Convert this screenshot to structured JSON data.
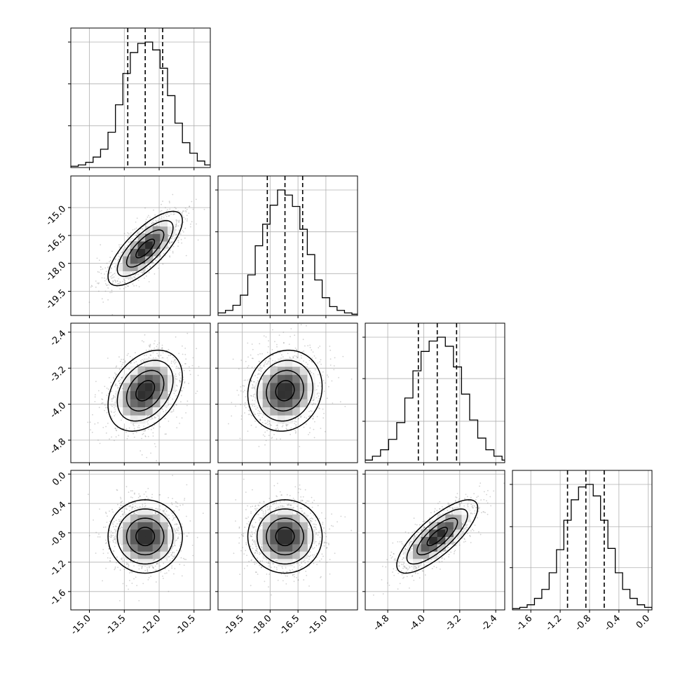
{
  "chart_data": {
    "type": "corner",
    "variables": [
      {
        "limits": [
          -15.8,
          -9.8
        ],
        "ticks": [
          "-15.0",
          "-13.5",
          "-12.0",
          "-10.5"
        ],
        "center": -12.6,
        "sigma": 0.8,
        "quantiles": [
          -13.35,
          -12.6,
          -11.85
        ],
        "hist": [
          1,
          2,
          4,
          8,
          14,
          27,
          48,
          72,
          88,
          95,
          96,
          90,
          76,
          55,
          34,
          19,
          11,
          5,
          2,
          1
        ]
      },
      {
        "limits": [
          -20.8,
          -13.3
        ],
        "ticks": [
          "-19.5",
          "-18.0",
          "-16.5",
          "-15.0"
        ],
        "center": -17.2,
        "sigma": 1.0,
        "quantiles": [
          -18.15,
          -17.2,
          -16.25
        ],
        "hist": [
          1,
          2,
          4,
          8,
          16,
          32,
          55,
          72,
          87,
          99,
          95,
          86,
          68,
          48,
          28,
          14,
          7,
          4,
          2,
          1
        ]
      },
      {
        "limits": [
          -5.3,
          -2.2
        ],
        "ticks": [
          "-4.8",
          "-4.0",
          "-3.2",
          "-2.4"
        ],
        "center": -3.7,
        "sigma": 0.45,
        "quantiles": [
          -4.12,
          -3.7,
          -3.27
        ],
        "hist": [
          1,
          2,
          5,
          10,
          18,
          31,
          50,
          71,
          86,
          94,
          97,
          90,
          74,
          53,
          33,
          19,
          10,
          5,
          2,
          1
        ]
      },
      {
        "limits": [
          -1.85,
          0.05
        ],
        "ticks": [
          "-1.6",
          "-1.2",
          "-0.8",
          "-0.4",
          "0.0"
        ],
        "center": -0.85,
        "sigma": 0.25,
        "quantiles": [
          -1.1,
          -0.85,
          -0.6
        ],
        "hist": [
          1,
          2,
          4,
          9,
          16,
          29,
          47,
          70,
          86,
          96,
          98,
          89,
          70,
          48,
          29,
          16,
          9,
          4,
          2,
          1
        ]
      }
    ],
    "correlations": [
      [
        1.0,
        0.75,
        0.35,
        0.0
      ],
      [
        0.75,
        1.0,
        0.1,
        0.0
      ],
      [
        0.35,
        0.1,
        1.0,
        0.78
      ],
      [
        0.0,
        0.0,
        0.78,
        1.0
      ]
    ],
    "contour_levels_sigma": [
      0.5,
      1.0,
      1.5,
      2.0
    ],
    "quantile_line_style": "dashed",
    "grid": true,
    "colors": {
      "ink": "#000000",
      "grid": "#b0b0b0",
      "points": "#7f7f7f",
      "fill": "#ffffff"
    }
  }
}
